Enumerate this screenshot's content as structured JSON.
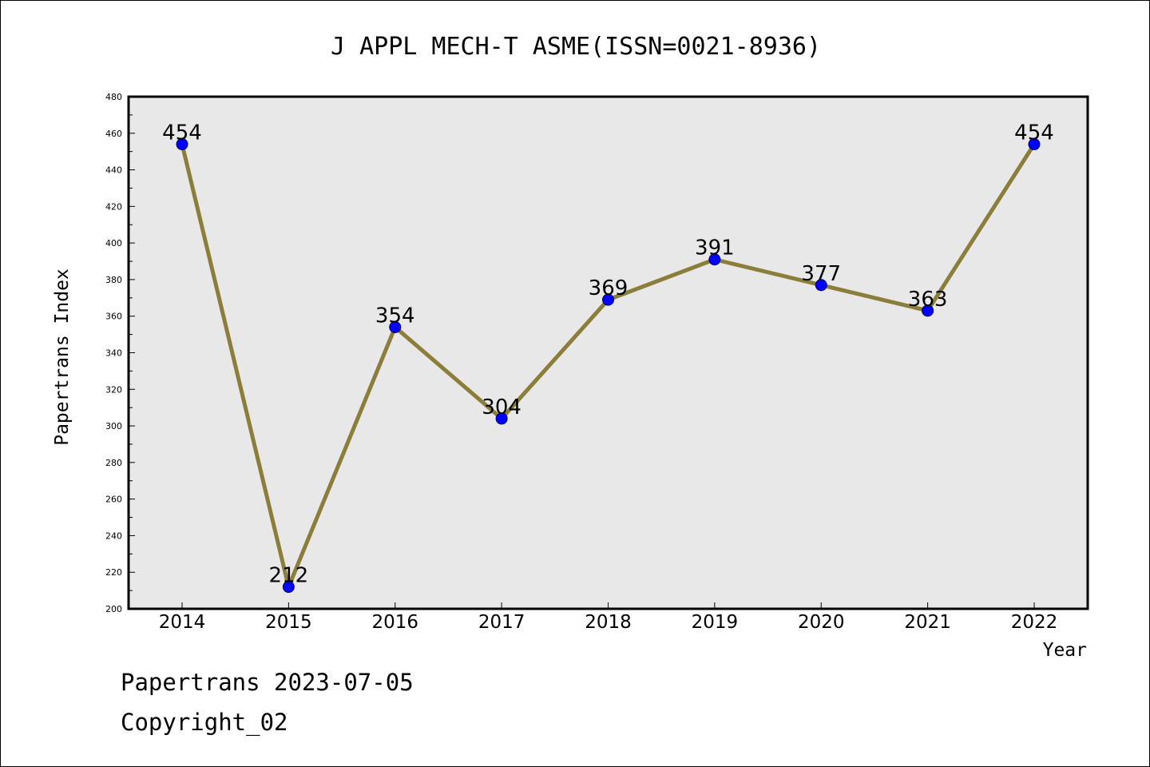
{
  "chart_data": {
    "type": "line",
    "title": "J APPL MECH-T ASME(ISSN=0021-8936)",
    "xlabel": "Year",
    "ylabel": "Papertrans Index",
    "x": [
      "2014",
      "2015",
      "2016",
      "2017",
      "2018",
      "2019",
      "2020",
      "2021",
      "2022"
    ],
    "values": [
      454,
      212,
      354,
      304,
      369,
      391,
      377,
      363,
      454
    ],
    "data_labels": [
      "454",
      "212",
      "354",
      "304",
      "369",
      "391",
      "377",
      "363",
      "454"
    ],
    "ylim": [
      200,
      480
    ],
    "yticks": [
      200,
      220,
      240,
      260,
      280,
      300,
      320,
      340,
      360,
      380,
      400,
      420,
      440,
      460,
      480
    ],
    "grid": false,
    "line_color": "#8b7d3a",
    "marker_color": "#0000ff",
    "plot_background": "#e8e8e8"
  },
  "footer": {
    "date_line": "Papertrans 2023-07-05",
    "copyright_line": "Copyright_02"
  }
}
